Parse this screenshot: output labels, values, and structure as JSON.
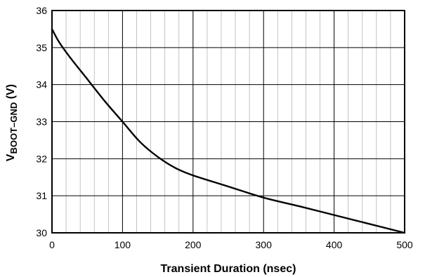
{
  "chart_data": {
    "type": "line",
    "title": "",
    "xlabel": "Transient Duration (nsec)",
    "ylabel": {
      "prefix": "V",
      "subscript": "BOOT–GND",
      "suffix": " (V)"
    },
    "xlim": [
      0,
      500
    ],
    "ylim": [
      30,
      36
    ],
    "x_ticks": [
      0,
      100,
      200,
      300,
      400,
      500
    ],
    "y_ticks": [
      30,
      31,
      32,
      33,
      34,
      35,
      36
    ],
    "x_minor_step": 20,
    "grid": true,
    "series": [
      {
        "x": [
          0,
          10,
          25,
          50,
          75,
          100,
          125,
          150,
          175,
          200,
          250,
          300,
          350,
          400,
          450,
          500
        ],
        "y": [
          35.5,
          35.15,
          34.75,
          34.15,
          33.55,
          33.0,
          32.45,
          32.05,
          31.75,
          31.55,
          31.25,
          30.95,
          30.72,
          30.48,
          30.24,
          30.0
        ]
      }
    ]
  }
}
